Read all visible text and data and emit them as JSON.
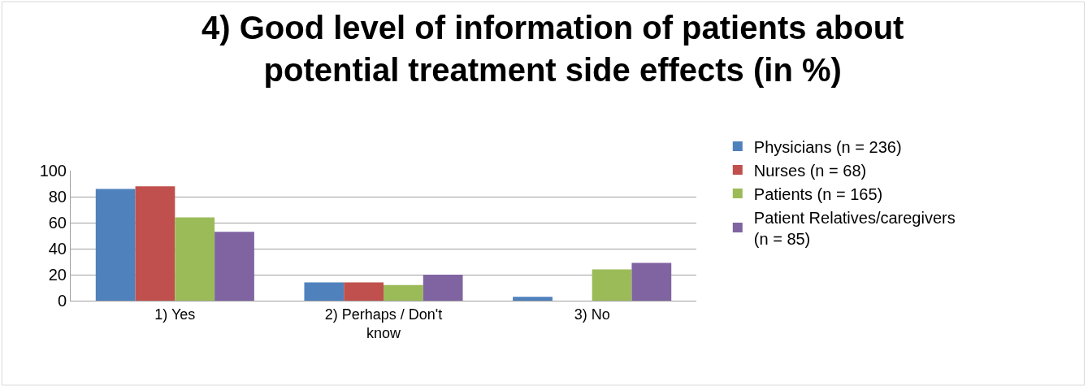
{
  "chart_data": {
    "type": "bar",
    "title": "4) Good level of information of patients about potential treatment side effects (in %)",
    "categories": [
      "1) Yes",
      "2) Perhaps / Don't know",
      "3) No"
    ],
    "series": [
      {
        "name": "Physicians (n = 236)",
        "color": "#4f81bd",
        "values": [
          86,
          14,
          3
        ]
      },
      {
        "name": "Nurses (n = 68)",
        "color": "#c0504d",
        "values": [
          88,
          14,
          0
        ]
      },
      {
        "name": "Patients (n = 165)",
        "color": "#9bbb59",
        "values": [
          64,
          12,
          24
        ]
      },
      {
        "name": "Patient Relatives/caregivers (n = 85)",
        "color": "#8064a2",
        "values": [
          53,
          20,
          29
        ]
      }
    ],
    "ylim": [
      0,
      100
    ],
    "yticks": [
      0,
      20,
      40,
      60,
      80,
      100
    ],
    "grid": "y",
    "legend": "right"
  }
}
